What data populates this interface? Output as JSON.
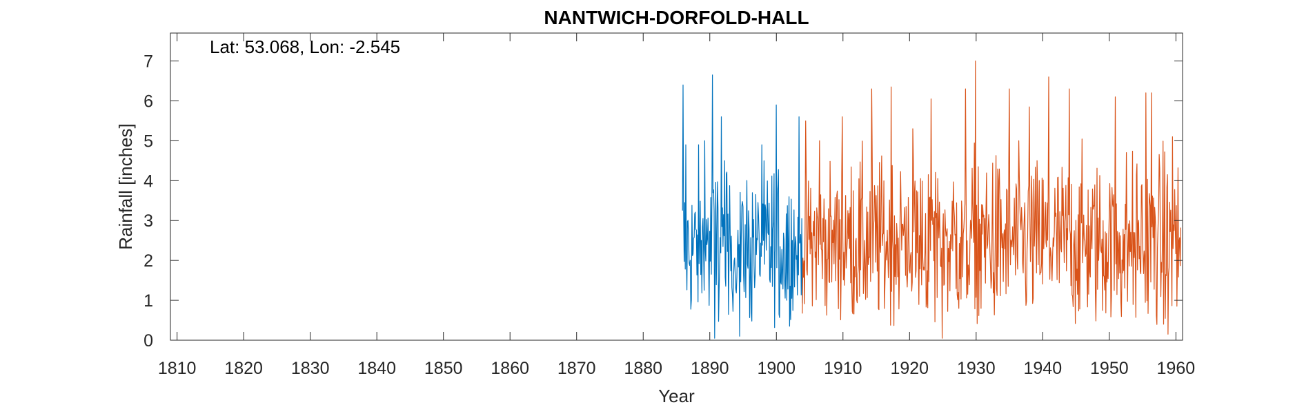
{
  "chart_data": {
    "type": "line",
    "title": "NANTWICH-DORFOLD-HALL",
    "annotation": "Lat: 53.068, Lon: -2.545",
    "xlabel": "Year",
    "ylabel": "Rainfall [inches]",
    "xlim": [
      1809,
      1961
    ],
    "ylim": [
      0,
      7.7
    ],
    "xticks": [
      1810,
      1820,
      1830,
      1840,
      1850,
      1860,
      1870,
      1880,
      1890,
      1900,
      1910,
      1920,
      1930,
      1940,
      1950,
      1960
    ],
    "yticks": [
      0,
      1,
      2,
      3,
      4,
      5,
      6,
      7
    ],
    "grid": false,
    "series": [
      {
        "color": "#0072bd",
        "x_start": 1885.9,
        "x_end": 1903.9,
        "mean": 2.3,
        "spread": 0.95,
        "min": 0.05,
        "max": 6.65,
        "peaks": [
          {
            "x": 1886.0,
            "y": 6.4
          },
          {
            "x": 1886.4,
            "y": 4.9
          },
          {
            "x": 1888.3,
            "y": 4.9
          },
          {
            "x": 1889.2,
            "y": 5.0
          },
          {
            "x": 1890.4,
            "y": 6.65
          },
          {
            "x": 1890.7,
            "y": 0.05
          },
          {
            "x": 1891.7,
            "y": 5.6
          },
          {
            "x": 1892.2,
            "y": 4.5
          },
          {
            "x": 1894.5,
            "y": 0.1
          },
          {
            "x": 1897.8,
            "y": 4.9
          },
          {
            "x": 1900.0,
            "y": 5.9
          },
          {
            "x": 1903.4,
            "y": 5.6
          }
        ]
      },
      {
        "color": "#d95319",
        "x_start": 1903.9,
        "x_end": 1960.8,
        "mean": 2.45,
        "spread": 1.05,
        "min": 0.05,
        "max": 7.0,
        "peaks": [
          {
            "x": 1906.5,
            "y": 5.0
          },
          {
            "x": 1909.9,
            "y": 5.6
          },
          {
            "x": 1914.3,
            "y": 6.3
          },
          {
            "x": 1917.2,
            "y": 6.35
          },
          {
            "x": 1920.5,
            "y": 5.3
          },
          {
            "x": 1923.2,
            "y": 6.05
          },
          {
            "x": 1924.9,
            "y": 0.05
          },
          {
            "x": 1928.4,
            "y": 6.3
          },
          {
            "x": 1929.9,
            "y": 7.0
          },
          {
            "x": 1935.0,
            "y": 6.3
          },
          {
            "x": 1938.0,
            "y": 5.85
          },
          {
            "x": 1940.9,
            "y": 6.6
          },
          {
            "x": 1944.0,
            "y": 6.3
          },
          {
            "x": 1950.9,
            "y": 6.1
          },
          {
            "x": 1955.5,
            "y": 6.2
          },
          {
            "x": 1956.3,
            "y": 6.2
          },
          {
            "x": 1958.8,
            "y": 0.15
          },
          {
            "x": 1959.5,
            "y": 5.1
          }
        ]
      }
    ]
  }
}
